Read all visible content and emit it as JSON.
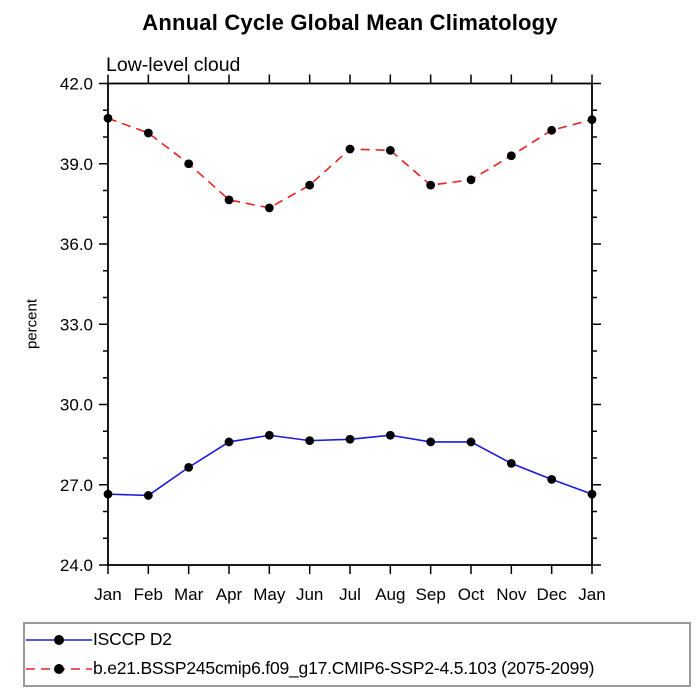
{
  "title": "Annual Cycle Global Mean Climatology",
  "subtitle": "Low-level cloud",
  "chart_data": {
    "type": "line",
    "x_categories": [
      "Jan",
      "Feb",
      "Mar",
      "Apr",
      "May",
      "Jun",
      "Jul",
      "Aug",
      "Sep",
      "Oct",
      "Nov",
      "Dec",
      "Jan"
    ],
    "ylabel": "percent",
    "ylim": [
      24.0,
      42.0
    ],
    "y_major_tick_step": 3.0,
    "y_minor_tick_step": 1.0,
    "y_major_tick_labels": [
      "24.0",
      "27.0",
      "30.0",
      "33.0",
      "36.0",
      "39.0",
      "42.0"
    ],
    "grid": false,
    "legend_position": "bottom-left-box",
    "series": [
      {
        "name": "ISCCP D2",
        "color": "#1a1adc",
        "line_style": "solid",
        "marker": "filled-circle",
        "marker_color": "#000000",
        "values": [
          26.65,
          26.6,
          27.65,
          28.6,
          28.85,
          28.65,
          28.7,
          28.85,
          28.6,
          28.6,
          27.8,
          27.2,
          26.65
        ]
      },
      {
        "name": "b.e21.BSSP245cmip6.f09_g17.CMIP6-SSP2-4.5.103 (2075-2099)",
        "color": "#e62222",
        "line_style": "dashed",
        "marker": "filled-circle",
        "marker_color": "#000000",
        "values": [
          40.7,
          40.15,
          39.0,
          37.65,
          37.35,
          38.2,
          39.55,
          39.5,
          38.2,
          38.4,
          39.3,
          40.25,
          40.65
        ]
      }
    ]
  },
  "colors": {
    "axis": "#000000",
    "text": "#000000",
    "legend_border": "#999999",
    "background": "#ffffff"
  }
}
